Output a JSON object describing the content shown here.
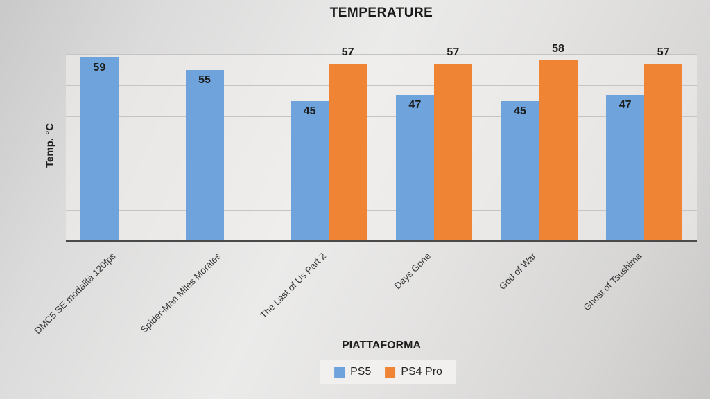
{
  "chart_data": {
    "type": "bar",
    "title": "TEMPERATURE",
    "xlabel": "PIATTAFORMA",
    "ylabel": "Temp. °C",
    "categories": [
      "DMC5 SE modalità 120fps",
      "Spider-Man Miles Morales",
      "The Last of Us Part 2",
      "Days Gone",
      "God of War",
      "Ghost of Tsushima"
    ],
    "series": [
      {
        "name": "PS5",
        "color": "#6EA4DB",
        "label_position": "inside",
        "values": [
          59,
          55,
          45,
          47,
          45,
          47
        ]
      },
      {
        "name": "PS4 Pro",
        "color": "#EE8434",
        "label_position": "above",
        "values": [
          null,
          null,
          57,
          57,
          58,
          57
        ]
      }
    ],
    "ylim": [
      0,
      60
    ],
    "gridline_step": 10,
    "grid": true,
    "legend_position": "bottom"
  }
}
